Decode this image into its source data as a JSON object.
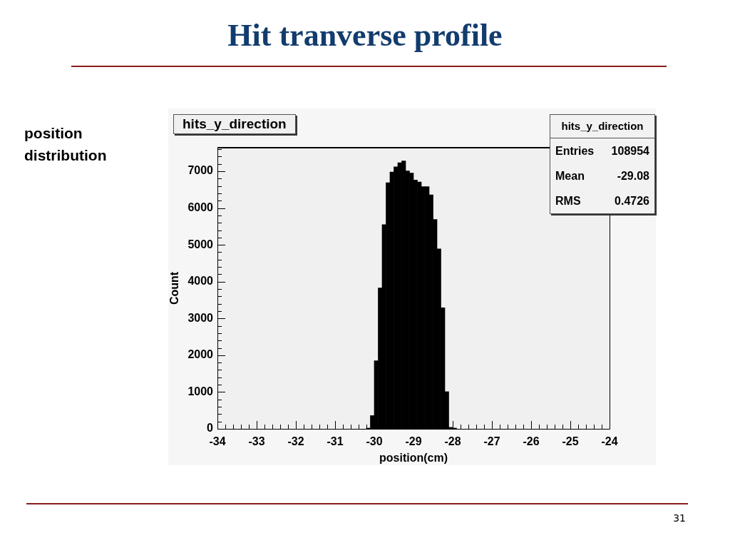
{
  "chart_data": {
    "type": "histogram",
    "title": "Hit tranverse profile",
    "subtitle": "hits_y_direction",
    "xlabel": "position(cm)",
    "ylabel": "Count",
    "annotations": [
      "position distribution",
      "hits_y_direction",
      "Entries 108954",
      "Mean -29.08",
      "RMS 0.4726",
      "31"
    ],
    "bins": [
      -30.2,
      -30.1,
      -30,
      -29.9,
      -29.8,
      -29.7,
      -29.6,
      -29.5,
      -29.4,
      -29.3,
      -29.2,
      -29.1,
      -29,
      -28.9,
      -28.8,
      -28.7,
      -28.6,
      -28.5,
      -28.4,
      -28.3,
      -28.2,
      -28.1,
      -28,
      -27.9
    ],
    "values": [
      20,
      360,
      1850,
      3830,
      5550,
      6690,
      6980,
      7120,
      7230,
      7280,
      7010,
      6950,
      6760,
      6710,
      6580,
      6580,
      6360,
      5690,
      4890,
      3290,
      1010,
      40,
      20
    ],
    "color": "#000000",
    "xlim": [
      -34,
      -24
    ],
    "ylim": [
      0,
      7640
    ],
    "xticks": [
      -34,
      {
        "value": -33.8,
        "label": null
      },
      {
        "value": -33.6,
        "label": null
      },
      {
        "value": -33.4,
        "label": null
      },
      {
        "value": -33.2,
        "label": null
      },
      -33,
      {
        "value": -32.8,
        "label": null
      },
      {
        "value": -32.6,
        "label": null
      },
      {
        "value": -32.4,
        "label": null
      },
      {
        "value": -32.2,
        "label": null
      },
      -32,
      {
        "value": -31.8,
        "label": null
      },
      {
        "value": -31.6,
        "label": null
      },
      {
        "value": -31.4,
        "label": null
      },
      {
        "value": -31.2,
        "label": null
      },
      -31,
      {
        "value": -30.8,
        "label": null
      },
      {
        "value": -30.6,
        "label": null
      },
      {
        "value": -30.4,
        "label": null
      },
      {
        "value": -30.2,
        "label": null
      },
      -30,
      {
        "value": -29.8,
        "label": null
      },
      {
        "value": -29.6,
        "label": null
      },
      {
        "value": -29.4,
        "label": null
      },
      {
        "value": -29.2,
        "label": null
      },
      -29,
      {
        "value": -28.8,
        "label": null
      },
      {
        "value": -28.6,
        "label": null
      },
      {
        "value": -28.4,
        "label": null
      },
      {
        "value": -28.2,
        "label": null
      },
      -28,
      {
        "value": -27.8,
        "label": null
      },
      {
        "value": -27.6,
        "label": null
      },
      {
        "value": -27.4,
        "label": null
      },
      {
        "value": -27.2,
        "label": null
      },
      -27,
      {
        "value": -26.8,
        "label": null
      },
      {
        "value": -26.6,
        "label": null
      },
      {
        "value": -26.4,
        "label": null
      },
      {
        "value": -26.2,
        "label": null
      },
      -26,
      {
        "value": -25.8,
        "label": null
      },
      {
        "value": -25.6,
        "label": null
      },
      {
        "value": -25.4,
        "label": null
      },
      {
        "value": -25.2,
        "label": null
      },
      -25,
      {
        "value": -24.8,
        "label": null
      },
      {
        "value": -24.6,
        "label": null
      },
      {
        "value": -24.4,
        "label": null
      },
      {
        "value": -24.2,
        "label": null
      },
      -24
    ],
    "yticks": [
      0,
      {
        "value": 200,
        "label": null
      },
      {
        "value": 400,
        "label": null
      },
      {
        "value": 600,
        "label": null
      },
      {
        "value": 800,
        "label": null
      },
      1000,
      {
        "value": 1200,
        "label": null
      },
      {
        "value": 1400,
        "label": null
      },
      {
        "value": 1600,
        "label": null
      },
      {
        "value": 1800,
        "label": null
      },
      2000,
      {
        "value": 2200,
        "label": null
      },
      {
        "value": 2400,
        "label": null
      },
      {
        "value": 2600,
        "label": null
      },
      {
        "value": 2800,
        "label": null
      },
      3000,
      {
        "value": 3200,
        "label": null
      },
      {
        "value": 3400,
        "label": null
      },
      {
        "value": 3600,
        "label": null
      },
      {
        "value": 3800,
        "label": null
      },
      4000,
      {
        "value": 4200,
        "label": null
      },
      {
        "value": 4400,
        "label": null
      },
      {
        "value": 4600,
        "label": null
      },
      {
        "value": 4800,
        "label": null
      },
      5000,
      {
        "value": 5200,
        "label": null
      },
      {
        "value": 5400,
        "label": null
      },
      {
        "value": 5600,
        "label": null
      },
      {
        "value": 5800,
        "label": null
      },
      6000,
      {
        "value": 6200,
        "label": null
      },
      {
        "value": 6400,
        "label": null
      },
      {
        "value": 6600,
        "label": null
      },
      {
        "value": 6800,
        "label": null
      },
      7000,
      {
        "value": 7200,
        "label": null
      },
      {
        "value": 7400,
        "label": null
      },
      {
        "value": 7600,
        "label": null
      }
    ]
  }
}
